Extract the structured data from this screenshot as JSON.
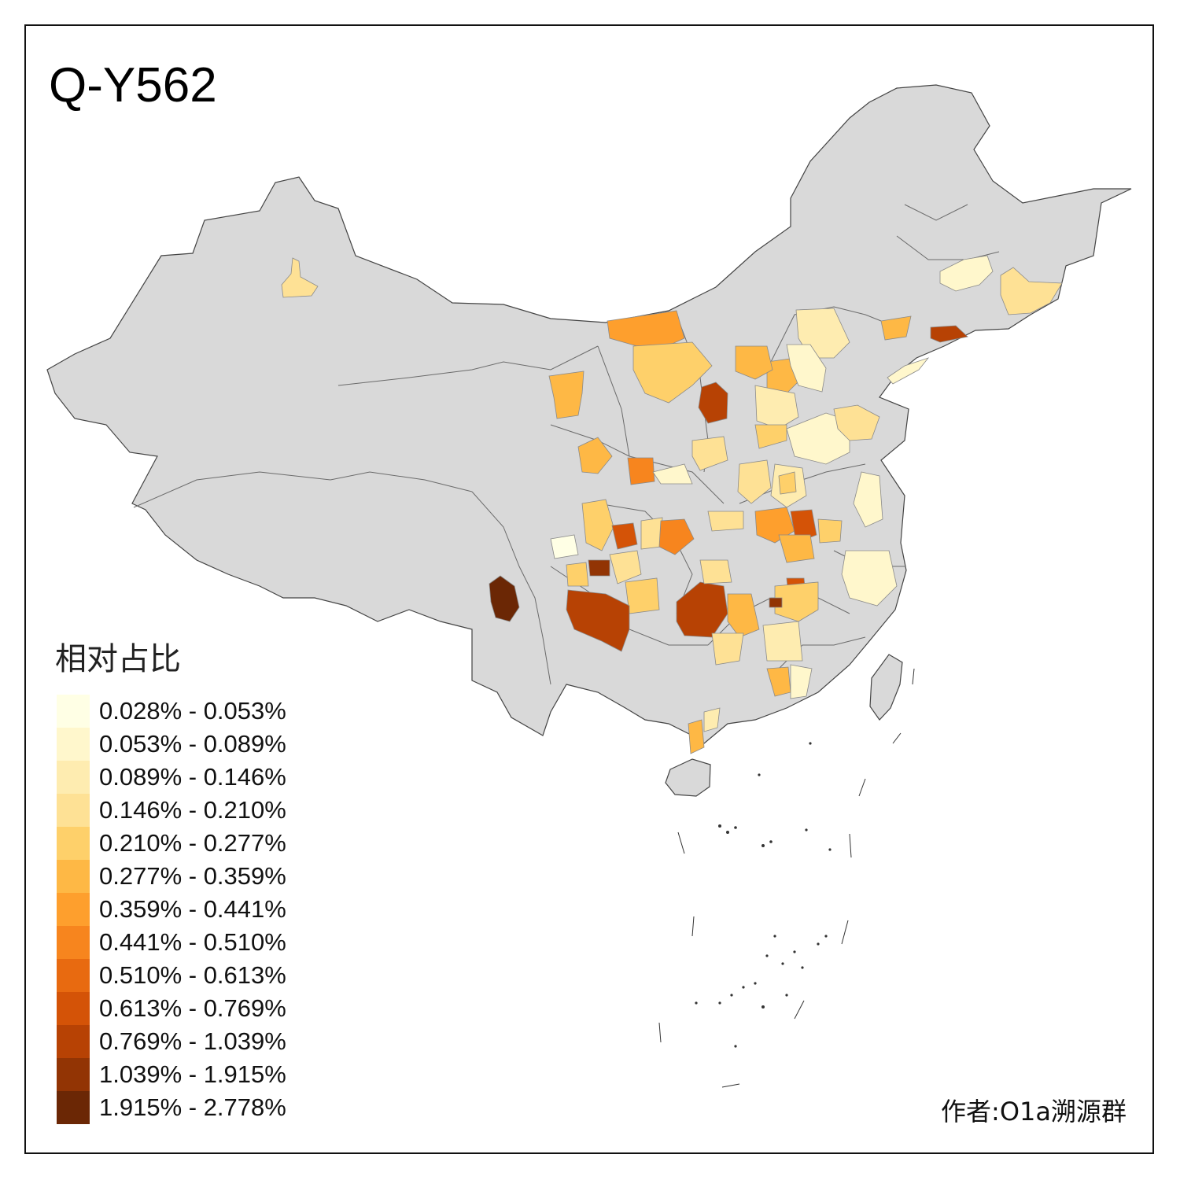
{
  "title": "Q-Y562",
  "legend": {
    "title": "相对占比",
    "items": [
      {
        "label": "0.028% - 0.053%",
        "color": "#ffffe5"
      },
      {
        "label": "0.053% - 0.089%",
        "color": "#fff7cc"
      },
      {
        "label": "0.089% - 0.146%",
        "color": "#feecb0"
      },
      {
        "label": "0.146% - 0.210%",
        "color": "#fee195"
      },
      {
        "label": "0.210% - 0.277%",
        "color": "#fed06a"
      },
      {
        "label": "0.277% - 0.359%",
        "color": "#feb845"
      },
      {
        "label": "0.359% - 0.441%",
        "color": "#fe9f2d"
      },
      {
        "label": "0.441% - 0.510%",
        "color": "#f7851e"
      },
      {
        "label": "0.510% - 0.613%",
        "color": "#e86a10"
      },
      {
        "label": "0.613% - 0.769%",
        "color": "#d45307"
      },
      {
        "label": "0.769% - 1.039%",
        "color": "#b74204"
      },
      {
        "label": "1.039% - 1.915%",
        "color": "#923404"
      },
      {
        "label": "1.915% - 2.778%",
        "color": "#6b2705"
      }
    ]
  },
  "map": {
    "base_color": "#d9d9d9",
    "border_color": "#444444"
  },
  "credit": "作者:O1a溯源群"
}
